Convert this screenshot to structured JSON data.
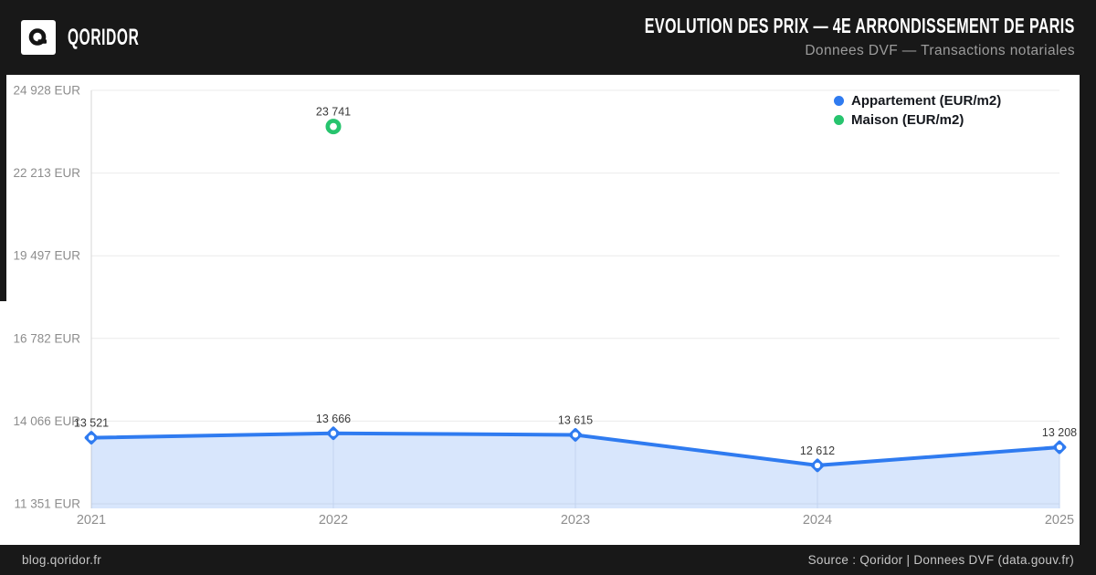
{
  "header": {
    "brand": "QORIDOR",
    "title": "EVOLUTION DES PRIX — 4E ARRONDISSEMENT DE PARIS",
    "subtitle": "Donnees DVF — Transactions notariales"
  },
  "footer": {
    "left": "blog.qoridor.fr",
    "right": "Source : Qoridor | Donnees DVF (data.gouv.fr)"
  },
  "colors": {
    "header_bg": "#181818",
    "panel_bg": "#ffffff",
    "appartement": "#2f7bf0",
    "maison": "#27c46e",
    "grid": "#ebebeb",
    "axis": "#d6d6d6",
    "drop_line": "#c3d4f0",
    "tick_text": "#8d8d8d",
    "point_label": "#3a3a3a",
    "legend_text": "#14171d",
    "subtitle_text": "#9c9c9c",
    "footer_text": "#c6c6c6"
  },
  "chart_data": {
    "type": "line",
    "title": "Evolution des prix — 4e arrondissement de Paris",
    "x": [
      "2021",
      "2022",
      "2023",
      "2024",
      "2025"
    ],
    "series": [
      {
        "name": "Appartement (EUR/m2)",
        "color": "#2f7bf0",
        "marker": "diamond",
        "area": true,
        "values": [
          13521,
          13666,
          13615,
          12612,
          13208
        ]
      },
      {
        "name": "Maison (EUR/m2)",
        "color": "#27c46e",
        "marker": "circle",
        "area": false,
        "values": [
          null,
          23741,
          null,
          null,
          null
        ]
      }
    ],
    "y_ticks": [
      11351,
      14066,
      16782,
      19497,
      22213,
      24928
    ],
    "y_tick_suffix": " EUR",
    "ylim": [
      11351,
      24928
    ],
    "grid": true,
    "point_labels": true,
    "legend_position": "top-right"
  }
}
